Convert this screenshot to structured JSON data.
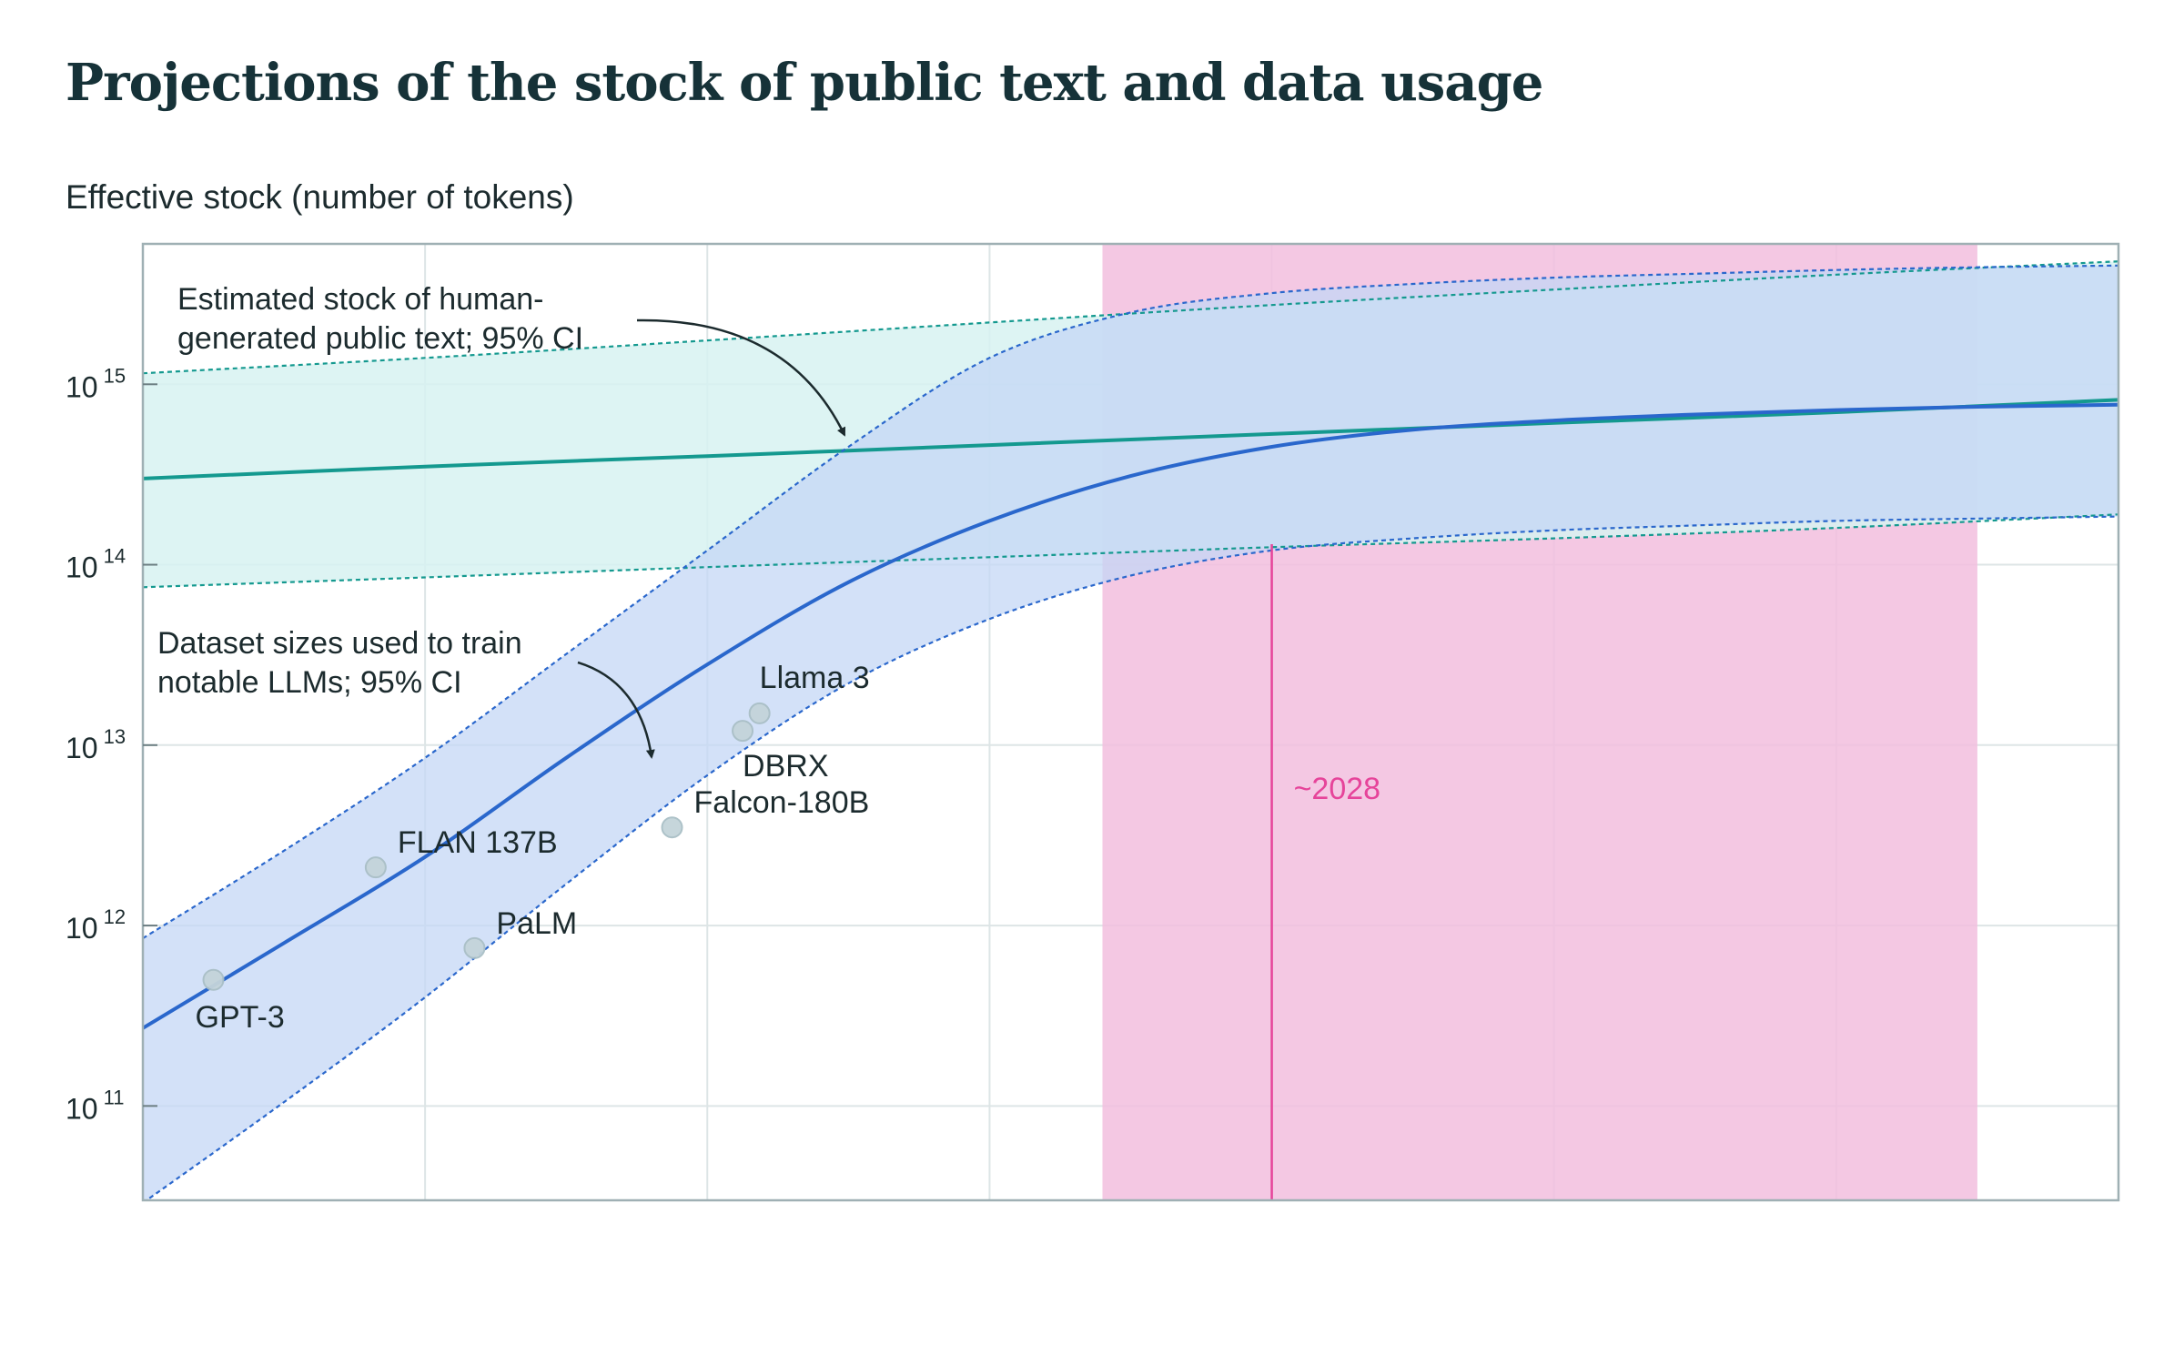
{
  "chart_data": {
    "type": "line",
    "title": "Projections of the stock of public text and data usage",
    "ylabel": "Effective stock (number of tokens)",
    "xlabel": "",
    "y_scale": "log",
    "ylim": [
      30000000000.0,
      6000000000000000.0
    ],
    "xlim": [
      2020,
      2034
    ],
    "grid": true,
    "y_ticks": [
      {
        "base": "10",
        "exp": "11",
        "value": 100000000000.0
      },
      {
        "base": "10",
        "exp": "12",
        "value": 1000000000000.0
      },
      {
        "base": "10",
        "exp": "13",
        "value": 10000000000000.0
      },
      {
        "base": "10",
        "exp": "14",
        "value": 100000000000000.0
      },
      {
        "base": "10",
        "exp": "15",
        "value": 1000000000000000.0
      }
    ],
    "x_gridlines": [
      2022,
      2024,
      2026,
      2028,
      2030,
      2032
    ],
    "colors": {
      "stock": "#14998f",
      "stock_band": "#d7f2f1",
      "data": "#2a67cc",
      "data_band": "#c4d7f5",
      "highlight": "#e6449a",
      "highlight_band": "#f2bede",
      "grid": "#dde5e6",
      "point": "#c4d4da"
    },
    "series": [
      {
        "key": "stock",
        "x": [
          2020,
          2022,
          2024,
          2026,
          2028,
          2030,
          2032,
          2034
        ],
        "median": [
          300000000000000.0,
          350000000000000.0,
          400000000000000.0,
          460000000000000.0,
          530000000000000.0,
          610000000000000.0,
          700000000000000.0,
          820000000000000.0
        ],
        "low": [
          75000000000000.0,
          85000000000000.0,
          97000000000000.0,
          110000000000000.0,
          125000000000000.0,
          140000000000000.0,
          160000000000000.0,
          190000000000000.0
        ],
        "high": [
          1150000000000000.0,
          1400000000000000.0,
          1750000000000000.0,
          2200000000000000.0,
          2750000000000000.0,
          3350000000000000.0,
          4050000000000000.0,
          4800000000000000.0
        ]
      },
      {
        "key": "data",
        "x": [
          2020,
          2021,
          2022,
          2023,
          2024,
          2025,
          2026,
          2027,
          2028,
          2029,
          2030,
          2031,
          2032,
          2033,
          2034
        ],
        "median": [
          270000000000.0,
          800000000000.0,
          2400000000000.0,
          8500000000000.0,
          28000000000000.0,
          80000000000000.0,
          175000000000000.0,
          310000000000000.0,
          450000000000000.0,
          560000000000000.0,
          630000000000000.0,
          680000000000000.0,
          720000000000000.0,
          750000000000000.0,
          770000000000000.0
        ],
        "low": [
          29000000000.0,
          105000000000.0,
          400000000000.0,
          1700000000000.0,
          6800000000000.0,
          22000000000000.0,
          50000000000000.0,
          87000000000000.0,
          120000000000000.0,
          140000000000000.0,
          155000000000000.0,
          165000000000000.0,
          175000000000000.0,
          180000000000000.0,
          185000000000000.0
        ],
        "high": [
          850000000000.0,
          2600000000000.0,
          8500000000000.0,
          32000000000000.0,
          120000000000000.0,
          450000000000000.0,
          1400000000000000.0,
          2500000000000000.0,
          3200000000000000.0,
          3600000000000000.0,
          3900000000000000.0,
          4100000000000000.0,
          4300000000000000.0,
          4450000000000000.0,
          4550000000000000.0
        ]
      }
    ],
    "points": [
      {
        "label": "GPT-3",
        "x": 2020.5,
        "y": 500000000000.0,
        "label_pos": "below-right"
      },
      {
        "label": "FLAN 137B",
        "x": 2021.65,
        "y": 2100000000000.0,
        "label_pos": "above-right"
      },
      {
        "label": "PaLM",
        "x": 2022.35,
        "y": 750000000000.0,
        "label_pos": "above-right"
      },
      {
        "label": "Falcon-180B",
        "x": 2023.75,
        "y": 3500000000000.0,
        "label_pos": "above-right"
      },
      {
        "label": "DBRX",
        "x": 2024.25,
        "y": 12000000000000.0,
        "label_pos": "below"
      },
      {
        "label": "Llama 3",
        "x": 2024.37,
        "y": 15000000000000.0,
        "label_pos": "above"
      }
    ],
    "highlight": {
      "x": 2028.0,
      "band": [
        2026.8,
        2033.0
      ],
      "label": "~2028"
    },
    "annotations": [
      {
        "key": "stock",
        "lines": [
          "Estimated stock of human-",
          "generated public text; 95% CI"
        ]
      },
      {
        "key": "data",
        "lines": [
          "Dataset sizes used to train",
          "notable LLMs; 95% CI"
        ]
      }
    ]
  }
}
